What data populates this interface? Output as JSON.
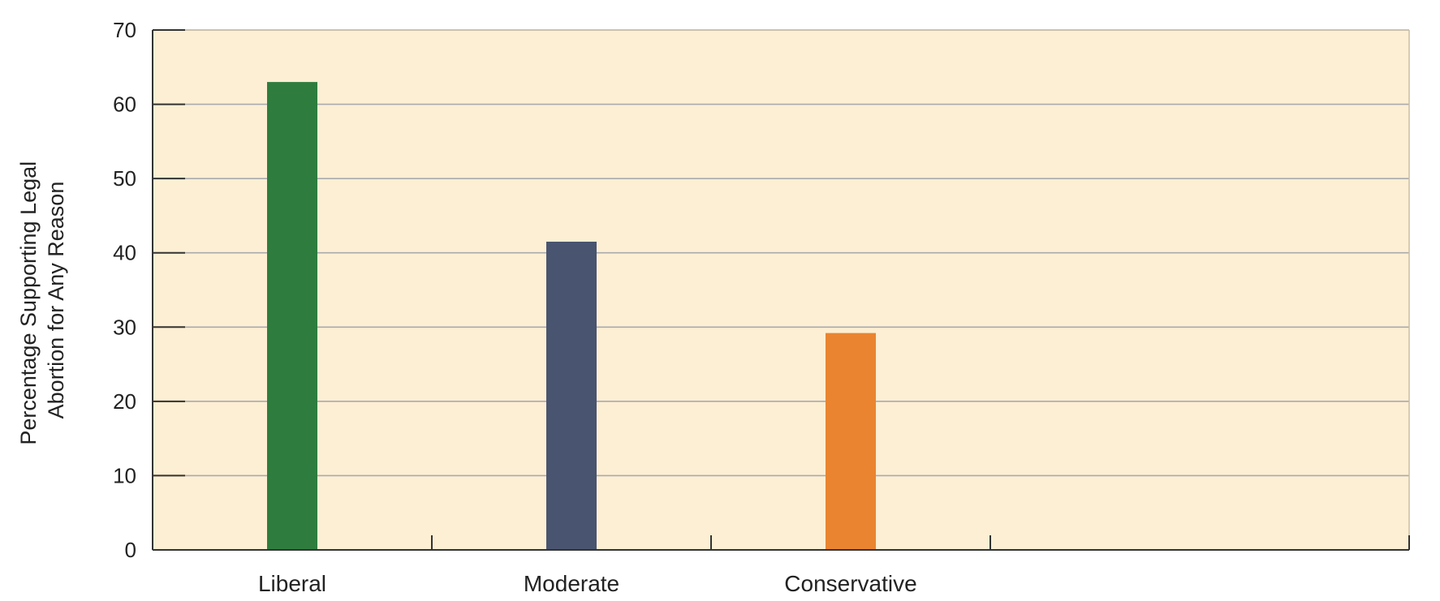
{
  "chart_data": {
    "type": "bar",
    "title": "",
    "xlabel": "",
    "ylabel_lines": [
      "Percentage Supporting Legal",
      "Abortion for Any Reason"
    ],
    "categories": [
      "Liberal",
      "Moderate",
      "Conservative"
    ],
    "values": [
      63,
      41.5,
      29.2
    ],
    "bar_colors": [
      "#2e7d3e",
      "#495470",
      "#ea8430"
    ],
    "ylim": [
      0,
      70
    ],
    "yticks": [
      0,
      10,
      20,
      30,
      40,
      50,
      60,
      70
    ],
    "grid": true,
    "legend": "none",
    "colors": {
      "plot_background": "#fdefd3",
      "gridline": "#a9aaae",
      "axis": "#333333"
    }
  }
}
